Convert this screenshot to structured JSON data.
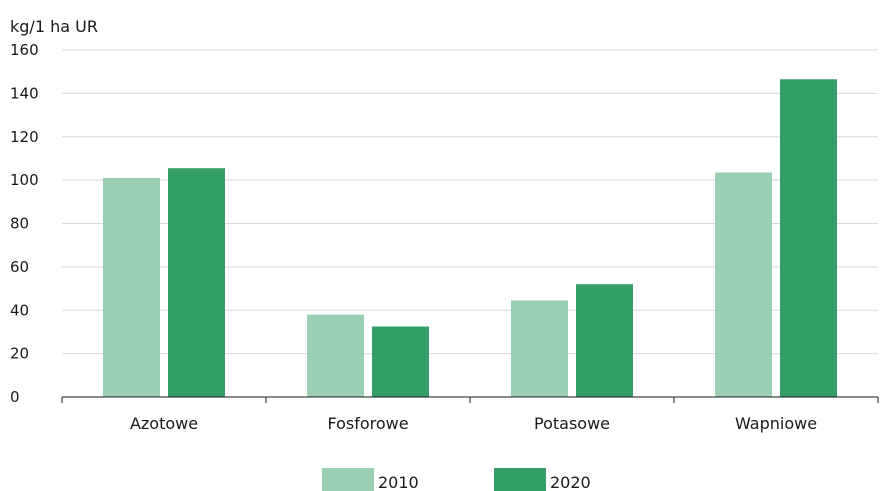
{
  "chart_data": {
    "type": "bar",
    "ylabel": "kg/1 ha UR",
    "categories": [
      "Azotowe",
      "Fosforowe",
      "Potasowe",
      "Wapniowe"
    ],
    "series": [
      {
        "name": "2010",
        "values": [
          101,
          38,
          44.5,
          103.5
        ],
        "color": "#9bcfb3"
      },
      {
        "name": "2020",
        "values": [
          105.5,
          32.5,
          52,
          146.5
        ],
        "color": "#339e68"
      }
    ],
    "ylim": [
      0,
      160
    ],
    "yticks": [
      0,
      20,
      40,
      60,
      80,
      100,
      120,
      140,
      160
    ],
    "grid": true,
    "legend_position": "bottom"
  }
}
